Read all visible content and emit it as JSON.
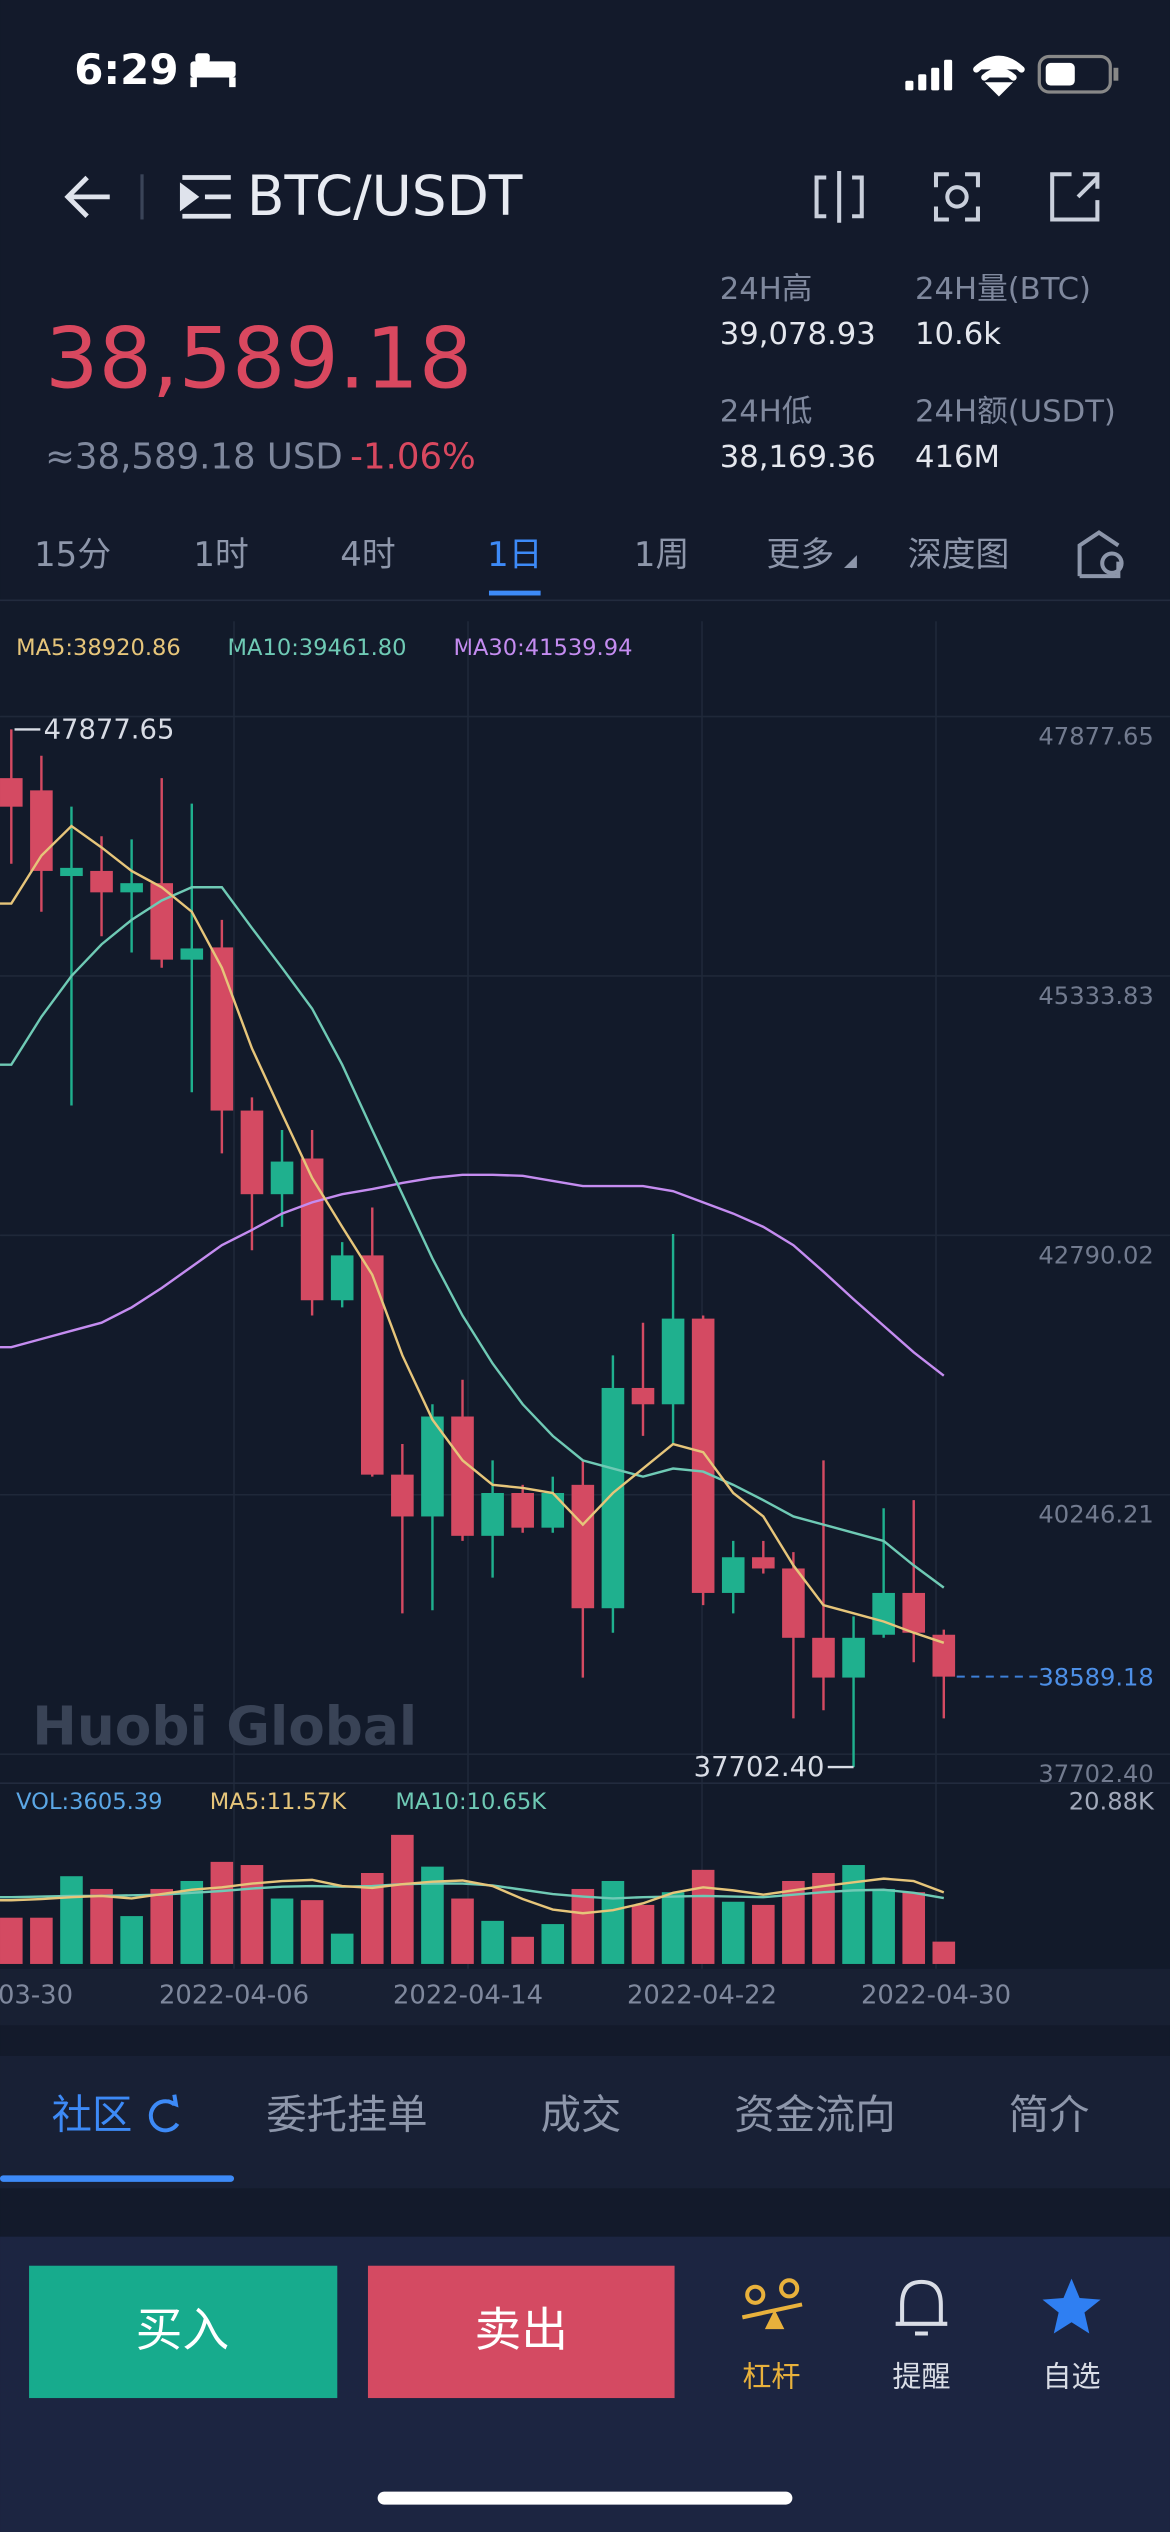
{
  "status": {
    "time": "6:29"
  },
  "header": {
    "pair": "BTC/USDT",
    "price": "38,589.18",
    "usd": "≈38,589.18 USD",
    "change": "-1.06%"
  },
  "stats": [
    {
      "label": "24H高",
      "value": "39,078.93"
    },
    {
      "label": "24H量(BTC)",
      "value": "10.6k"
    },
    {
      "label": "24H低",
      "value": "38,169.36"
    },
    {
      "label": "24H额(USDT)",
      "value": "416M"
    }
  ],
  "intervals": [
    "15分",
    "1时",
    "4时",
    "1日",
    "1周",
    "更多",
    "深度图"
  ],
  "active_interval": 3,
  "chart": {
    "type": "candlestick",
    "up_color": "#1fb08e",
    "down_color": "#d44a62",
    "legend": [
      {
        "text": "MA5:38920.86",
        "color": "#e6c57a"
      },
      {
        "text": "MA10:39461.80",
        "color": "#6fcab5"
      },
      {
        "text": "MA30:41539.94",
        "color": "#c48cf0"
      }
    ],
    "ylim": [
      37702.4,
      47877.65
    ],
    "yticks": [
      {
        "value": 37702.4,
        "label": "37702.40"
      },
      40246.21,
      42790.02,
      45333.83,
      47877.65
    ],
    "high_label": "47877.65",
    "low_label": "37702.40",
    "last_label": "38589.18",
    "watermark": "Huobi Global",
    "x_labels": [
      "03-30",
      "2022-04-06",
      "2022-04-14",
      "2022-04-22",
      "2022-04-30"
    ],
    "candles": [
      {
        "open": 47400,
        "high": 47877.65,
        "low": 46560,
        "close": 47120
      },
      {
        "open": 47280,
        "high": 47620,
        "low": 46090,
        "close": 46490
      },
      {
        "open": 46440,
        "high": 47120,
        "low": 44190,
        "close": 46520
      },
      {
        "open": 46490,
        "high": 46830,
        "low": 45850,
        "close": 46280
      },
      {
        "open": 46280,
        "high": 46800,
        "low": 45690,
        "close": 46370
      },
      {
        "open": 46370,
        "high": 47400,
        "low": 45540,
        "close": 45620
      },
      {
        "open": 45620,
        "high": 47150,
        "low": 44320,
        "close": 45730
      },
      {
        "open": 45740,
        "high": 46010,
        "low": 43720,
        "close": 44140
      },
      {
        "open": 44140,
        "high": 44270,
        "low": 42770,
        "close": 43320
      },
      {
        "open": 43320,
        "high": 43950,
        "low": 43000,
        "close": 43640
      },
      {
        "open": 43670,
        "high": 43950,
        "low": 42130,
        "close": 42280
      },
      {
        "open": 42280,
        "high": 42850,
        "low": 42210,
        "close": 42720
      },
      {
        "open": 42720,
        "high": 43190,
        "low": 40550,
        "close": 40570
      },
      {
        "open": 40570,
        "high": 40870,
        "low": 39210,
        "close": 40160
      },
      {
        "open": 40160,
        "high": 41260,
        "low": 39240,
        "close": 41140
      },
      {
        "open": 41140,
        "high": 41500,
        "low": 39920,
        "close": 39970
      },
      {
        "open": 39970,
        "high": 40710,
        "low": 39560,
        "close": 40390
      },
      {
        "open": 40390,
        "high": 40470,
        "low": 40000,
        "close": 40050
      },
      {
        "open": 40050,
        "high": 40550,
        "low": 40000,
        "close": 40390
      },
      {
        "open": 40470,
        "high": 40710,
        "low": 38580,
        "close": 39260
      },
      {
        "open": 39260,
        "high": 41740,
        "low": 39020,
        "close": 41420
      },
      {
        "open": 41420,
        "high": 42060,
        "low": 40950,
        "close": 41260
      },
      {
        "open": 41260,
        "high": 42930,
        "low": 40870,
        "close": 42100
      },
      {
        "open": 42100,
        "high": 42130,
        "low": 39290,
        "close": 39410
      },
      {
        "open": 39410,
        "high": 39920,
        "low": 39210,
        "close": 39760
      },
      {
        "open": 39760,
        "high": 39920,
        "low": 39600,
        "close": 39650
      },
      {
        "open": 39650,
        "high": 39810,
        "low": 38180,
        "close": 38970
      },
      {
        "open": 38970,
        "high": 40710,
        "low": 38260,
        "close": 38580
      },
      {
        "open": 38580,
        "high": 39180,
        "low": 37702.4,
        "close": 38970
      },
      {
        "open": 39000,
        "high": 40240,
        "low": 38970,
        "close": 39410
      },
      {
        "open": 39410,
        "high": 40320,
        "low": 38730,
        "close": 39020
      },
      {
        "open": 39000,
        "high": 39050,
        "low": 38180,
        "close": 38589.18
      }
    ],
    "ma5": [
      46170,
      46640,
      46930,
      46720,
      46490,
      46330,
      46090,
      45540,
      44750,
      44110,
      43480,
      43000,
      42530,
      41740,
      41110,
      40710,
      40470,
      40440,
      40390,
      40080,
      40390,
      40630,
      40870,
      40790,
      40390,
      40160,
      39680,
      39290,
      39210,
      39130,
      39020,
      38920.86
    ],
    "ma10": [
      44590,
      45060,
      45460,
      45770,
      46010,
      46200,
      46330,
      46330,
      45930,
      45540,
      45140,
      44590,
      43950,
      43320,
      42690,
      42130,
      41660,
      41260,
      40950,
      40710,
      40630,
      40550,
      40630,
      40600,
      40470,
      40320,
      40160,
      40080,
      40000,
      39920,
      39680,
      39461.8
    ],
    "ma30": [
      41820,
      41900,
      41980,
      42060,
      42210,
      42400,
      42610,
      42820,
      42970,
      43130,
      43240,
      43320,
      43370,
      43430,
      43480,
      43510,
      43510,
      43500,
      43450,
      43400,
      43400,
      43400,
      43350,
      43240,
      43130,
      43000,
      42820,
      42560,
      42290,
      42030,
      41770,
      41539.94
    ],
    "volume": {
      "legend": [
        {
          "text": "VOL:3605.39",
          "color": "#5ba7e6"
        },
        {
          "text": "MA5:11.57K",
          "color": "#e6c57a"
        },
        {
          "text": "MA10:10.65K",
          "color": "#6fcab5"
        }
      ],
      "ylim": [
        0,
        20.88
      ],
      "yticks": [
        {
          "value": 20.88,
          "label": "20.88K"
        }
      ],
      "values": [
        7.48,
        7.48,
        14.19,
        12.13,
        7.74,
        12.13,
        13.42,
        16.51,
        16.0,
        10.58,
        10.32,
        4.9,
        14.71,
        20.88,
        15.74,
        10.58,
        6.97,
        4.39,
        6.45,
        12.13,
        13.42,
        9.55,
        11.61,
        15.22,
        10.06,
        9.55,
        13.42,
        14.71,
        16.0,
        12.13,
        11.61,
        3.61
      ],
      "ma5": [
        10.3,
        10.5,
        10.8,
        11.0,
        10.6,
        11.3,
        12.0,
        12.4,
        13.0,
        13.4,
        13.6,
        12.6,
        12.3,
        12.9,
        13.3,
        13.5,
        12.6,
        10.5,
        8.8,
        8.2,
        8.7,
        9.8,
        11.5,
        12.4,
        11.9,
        11.2,
        11.9,
        12.6,
        13.2,
        13.8,
        13.4,
        11.57
      ],
      "ma10": [
        10.8,
        10.9,
        11.0,
        11.0,
        11.1,
        11.2,
        11.5,
        11.8,
        12.2,
        12.5,
        12.6,
        12.5,
        12.6,
        12.9,
        13.0,
        13.0,
        12.7,
        12.0,
        11.3,
        10.9,
        10.6,
        10.8,
        10.9,
        11.0,
        10.9,
        10.8,
        11.2,
        11.6,
        11.9,
        12.0,
        11.5,
        10.65
      ]
    }
  },
  "tabs": [
    "社区",
    "委托挂单",
    "成交",
    "资金流向",
    "简介"
  ],
  "active_tab": 0,
  "actions": {
    "buy": "买入",
    "sell": "卖出"
  },
  "nav": [
    "杠杆",
    "提醒",
    "自选"
  ]
}
